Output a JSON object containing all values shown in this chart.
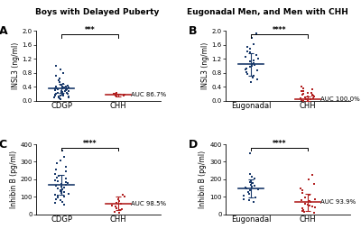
{
  "title_left": "Boys with Delayed Puberty",
  "title_right": "Eugonadal Men, and Men with CHH",
  "A": {
    "group1_label": "CDGP",
    "group2_label": "CHH",
    "ylabel": "INSL3 (ng/ml)",
    "ylim": [
      0.0,
      2.0
    ],
    "yticks": [
      0.0,
      0.4,
      0.8,
      1.2,
      1.6,
      2.0
    ],
    "yticklabels": [
      "0.0",
      "0.4",
      "0.8",
      "1.2",
      "1.6",
      "2.0"
    ],
    "sig_label": "***",
    "auc_label": "AUC 86.7%",
    "group1_mean": 0.35,
    "group1_sd": 0.13,
    "group2_mean": 0.175,
    "group2_sd": 0.04,
    "group1_data": [
      0.06,
      0.08,
      0.09,
      0.1,
      0.11,
      0.12,
      0.13,
      0.14,
      0.15,
      0.16,
      0.17,
      0.18,
      0.19,
      0.2,
      0.21,
      0.22,
      0.23,
      0.24,
      0.25,
      0.26,
      0.27,
      0.28,
      0.29,
      0.3,
      0.31,
      0.32,
      0.33,
      0.34,
      0.35,
      0.36,
      0.37,
      0.38,
      0.39,
      0.4,
      0.41,
      0.42,
      0.44,
      0.46,
      0.5,
      0.55,
      0.6,
      0.65,
      0.72,
      0.8,
      0.9,
      1.0,
      0.35,
      0.33,
      0.37
    ],
    "group2_data": [
      0.12,
      0.14,
      0.16,
      0.17,
      0.18,
      0.19,
      0.2,
      0.21,
      0.22
    ]
  },
  "B": {
    "group1_label": "Eugonadal",
    "group2_label": "CHH",
    "ylabel": "INSL3 (ng/ml)",
    "ylim": [
      0.0,
      2.0
    ],
    "yticks": [
      0.0,
      0.4,
      0.8,
      1.2,
      1.6,
      2.0
    ],
    "yticklabels": [
      "0.0",
      "0.4",
      "0.8",
      "1.2",
      "1.6",
      "2.0"
    ],
    "sig_label": "****",
    "auc_label": "AUC 100.0%",
    "group1_mean": 1.05,
    "group1_sd": 0.32,
    "group2_mean": 0.06,
    "group2_sd": 0.06,
    "group1_data": [
      0.55,
      0.62,
      0.68,
      0.72,
      0.78,
      0.82,
      0.88,
      0.9,
      0.93,
      0.97,
      1.0,
      1.03,
      1.06,
      1.09,
      1.12,
      1.16,
      1.2,
      1.25,
      1.3,
      1.38,
      1.42,
      1.48,
      1.55,
      1.62,
      1.8,
      1.92
    ],
    "group2_data": [
      0.01,
      0.02,
      0.03,
      0.04,
      0.05,
      0.06,
      0.07,
      0.08,
      0.1,
      0.12,
      0.14,
      0.16,
      0.18,
      0.2,
      0.24,
      0.28,
      0.32,
      0.36,
      0.4,
      0.28,
      0.22,
      0.18,
      0.12,
      0.08
    ]
  },
  "C": {
    "group1_label": "CDGP",
    "group2_label": "CHH",
    "ylabel": "Inhibin B (pg/ml)",
    "ylim": [
      0,
      400
    ],
    "yticks": [
      0,
      100,
      200,
      300,
      400
    ],
    "yticklabels": [
      "0",
      "100",
      "200",
      "300",
      "400"
    ],
    "sig_label": "****",
    "auc_label": "AUC 98.5%",
    "group1_mean": 168,
    "group1_sd": 58,
    "group2_mean": 62,
    "group2_sd": 38,
    "group1_data": [
      55,
      65,
      72,
      80,
      88,
      95,
      100,
      108,
      112,
      118,
      122,
      128,
      133,
      138,
      142,
      148,
      153,
      158,
      163,
      168,
      172,
      178,
      183,
      188,
      195,
      202,
      210,
      220,
      232,
      245,
      258,
      272,
      290,
      308,
      328,
      365
    ],
    "group2_data": [
      8,
      15,
      22,
      28,
      35,
      42,
      50,
      58,
      65,
      75,
      88,
      102,
      112
    ]
  },
  "D": {
    "group1_label": "Eugonadal",
    "group2_label": "CHH",
    "ylabel": "Inhibin B (pg/ml)",
    "ylim": [
      0,
      400
    ],
    "yticks": [
      0,
      100,
      200,
      300,
      400
    ],
    "yticklabels": [
      "0",
      "100",
      "200",
      "300",
      "400"
    ],
    "sig_label": "****",
    "auc_label": "AUC 93.9%",
    "group1_mean": 148,
    "group1_sd": 52,
    "group2_mean": 68,
    "group2_sd": 48,
    "group1_data": [
      68,
      78,
      88,
      98,
      108,
      118,
      128,
      136,
      142,
      148,
      152,
      158,
      164,
      170,
      176,
      182,
      192,
      202,
      215,
      232,
      348
    ],
    "group2_data": [
      8,
      14,
      20,
      26,
      32,
      38,
      44,
      50,
      56,
      62,
      68,
      74,
      80,
      88,
      98,
      110,
      122,
      135,
      150,
      175,
      198,
      225
    ]
  },
  "blue_color": "#1a3a6b",
  "red_color": "#b22222",
  "bg_color": "#ffffff",
  "title_fontsize": 6.5,
  "panel_label_fontsize": 9,
  "tick_fontsize": 5,
  "ylabel_fontsize": 5.5,
  "xlabel_fontsize": 6,
  "auc_fontsize": 5,
  "sig_fontsize": 5.5
}
